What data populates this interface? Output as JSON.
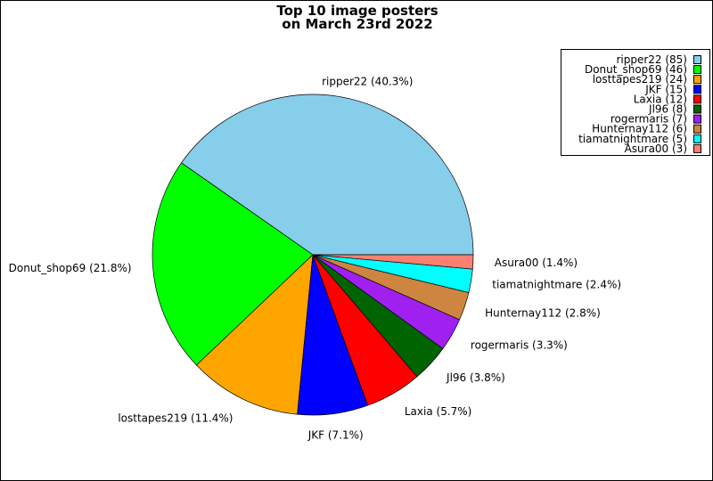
{
  "chart_data": {
    "type": "pie",
    "title": [
      "Top 10 image posters",
      "on March 23rd 2022"
    ],
    "start_angle_deg": 0,
    "direction": "counterclockwise",
    "legend_position": "top-right",
    "slices": [
      {
        "name": "ripper22",
        "value": 85,
        "label": "ripper22 (40.3%)",
        "legend": "ripper22 (85)",
        "color": "#87ceeb"
      },
      {
        "name": "Donut_shop69",
        "value": 46,
        "label": "Donut_shop69 (21.8%)",
        "legend": "Donut_shop69 (46)",
        "color": "#00ff00"
      },
      {
        "name": "losttapes219",
        "value": 24,
        "label": "losttapes219 (11.4%)",
        "legend": "losttapes219 (24)",
        "color": "#ffa500"
      },
      {
        "name": "JKF",
        "value": 15,
        "label": "JKF (7.1%)",
        "legend": "JKF (15)",
        "color": "#0000ff"
      },
      {
        "name": "Laxia",
        "value": 12,
        "label": "Laxia (5.7%)",
        "legend": "Laxia (12)",
        "color": "#ff0000"
      },
      {
        "name": "Jl96",
        "value": 8,
        "label": "Jl96 (3.8%)",
        "legend": "Jl96 (8)",
        "color": "#006400"
      },
      {
        "name": "rogermaris",
        "value": 7,
        "label": "rogermaris (3.3%)",
        "legend": "rogermaris (7)",
        "color": "#a020f0"
      },
      {
        "name": "Hunternay112",
        "value": 6,
        "label": "Hunternay112 (2.8%)",
        "legend": "Hunternay112 (6)",
        "color": "#cd853f"
      },
      {
        "name": "tiamatnightmare",
        "value": 5,
        "label": "tiamatnightmare (2.4%)",
        "legend": "tiamatnightmare (5)",
        "color": "#00ffff"
      },
      {
        "name": "Asura00",
        "value": 3,
        "label": "Asura00 (1.4%)",
        "legend": "Asura00 (3)",
        "color": "#fa8072"
      }
    ]
  }
}
